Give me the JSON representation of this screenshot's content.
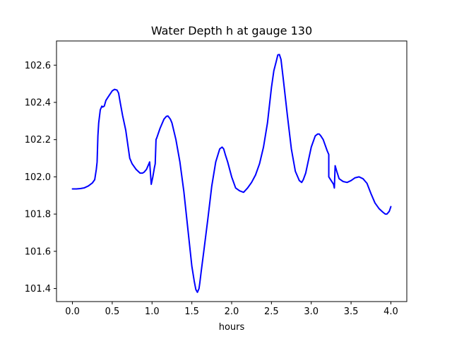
{
  "chart_data": {
    "type": "line",
    "title": "Water Depth h at gauge 130",
    "xlabel": "hours",
    "ylabel": "",
    "xlim": [
      -0.2,
      4.2
    ],
    "ylim": [
      101.33,
      102.73
    ],
    "x_ticks": [
      0.0,
      0.5,
      1.0,
      1.5,
      2.0,
      2.5,
      3.0,
      3.5,
      4.0
    ],
    "x_tick_labels": [
      "0.0",
      "0.5",
      "1.0",
      "1.5",
      "2.0",
      "2.5",
      "3.0",
      "3.5",
      "4.0"
    ],
    "y_ticks": [
      101.4,
      101.6,
      101.8,
      102.0,
      102.2,
      102.4,
      102.6
    ],
    "y_tick_labels": [
      "101.4",
      "101.6",
      "101.8",
      "102.0",
      "102.2",
      "102.4",
      "102.6"
    ],
    "grid": false,
    "legend": "none",
    "series": [
      {
        "color": "#0000ff",
        "x": [
          0.0,
          0.05,
          0.1,
          0.15,
          0.2,
          0.25,
          0.28,
          0.3,
          0.31,
          0.32,
          0.33,
          0.35,
          0.37,
          0.38,
          0.4,
          0.42,
          0.45,
          0.5,
          0.53,
          0.56,
          0.58,
          0.6,
          0.63,
          0.67,
          0.7,
          0.72,
          0.75,
          0.8,
          0.85,
          0.88,
          0.9,
          0.93,
          0.96,
          0.97,
          0.99,
          1.01,
          1.03,
          1.04,
          1.05,
          1.06,
          1.1,
          1.15,
          1.18,
          1.2,
          1.23,
          1.25,
          1.3,
          1.35,
          1.4,
          1.45,
          1.5,
          1.53,
          1.55,
          1.57,
          1.59,
          1.6,
          1.62,
          1.65,
          1.7,
          1.75,
          1.8,
          1.85,
          1.88,
          1.9,
          1.92,
          1.95,
          2.0,
          2.05,
          2.1,
          2.15,
          2.2,
          2.25,
          2.3,
          2.35,
          2.4,
          2.45,
          2.5,
          2.53,
          2.56,
          2.58,
          2.6,
          2.62,
          2.65,
          2.7,
          2.75,
          2.8,
          2.85,
          2.88,
          2.9,
          2.93,
          2.95,
          3.0,
          3.05,
          3.08,
          3.1,
          3.12,
          3.15,
          3.2,
          3.22,
          3.22,
          3.25,
          3.28,
          3.29,
          3.3,
          3.32,
          3.35,
          3.4,
          3.45,
          3.5,
          3.55,
          3.6,
          3.65,
          3.7,
          3.75,
          3.8,
          3.85,
          3.9,
          3.93,
          3.95,
          3.98,
          4.0
        ],
        "y": [
          101.935,
          101.935,
          101.937,
          101.941,
          101.951,
          101.967,
          101.985,
          102.04,
          102.08,
          102.22,
          102.29,
          102.36,
          102.38,
          102.375,
          102.38,
          102.41,
          102.43,
          102.462,
          102.47,
          102.466,
          102.45,
          102.4,
          102.33,
          102.25,
          102.16,
          102.1,
          102.07,
          102.04,
          102.02,
          102.02,
          102.025,
          102.04,
          102.07,
          102.08,
          101.96,
          102.0,
          102.05,
          102.07,
          102.2,
          102.21,
          102.26,
          102.31,
          102.325,
          102.327,
          102.31,
          102.29,
          102.2,
          102.08,
          101.92,
          101.72,
          101.52,
          101.44,
          101.395,
          101.38,
          101.4,
          101.43,
          101.5,
          101.6,
          101.77,
          101.95,
          102.08,
          102.15,
          102.16,
          102.15,
          102.12,
          102.08,
          102.0,
          101.94,
          101.925,
          101.917,
          101.94,
          101.97,
          102.01,
          102.07,
          102.16,
          102.29,
          102.48,
          102.57,
          102.62,
          102.655,
          102.657,
          102.63,
          102.52,
          102.33,
          102.15,
          102.03,
          101.98,
          101.97,
          101.985,
          102.02,
          102.06,
          102.16,
          102.22,
          102.23,
          102.23,
          102.22,
          102.2,
          102.14,
          102.12,
          102.0,
          101.98,
          101.96,
          101.94,
          102.06,
          102.03,
          101.99,
          101.975,
          101.97,
          101.98,
          101.995,
          102.0,
          101.99,
          101.965,
          101.91,
          101.86,
          101.83,
          101.81,
          101.8,
          101.8,
          101.815,
          101.84
        ]
      }
    ]
  }
}
